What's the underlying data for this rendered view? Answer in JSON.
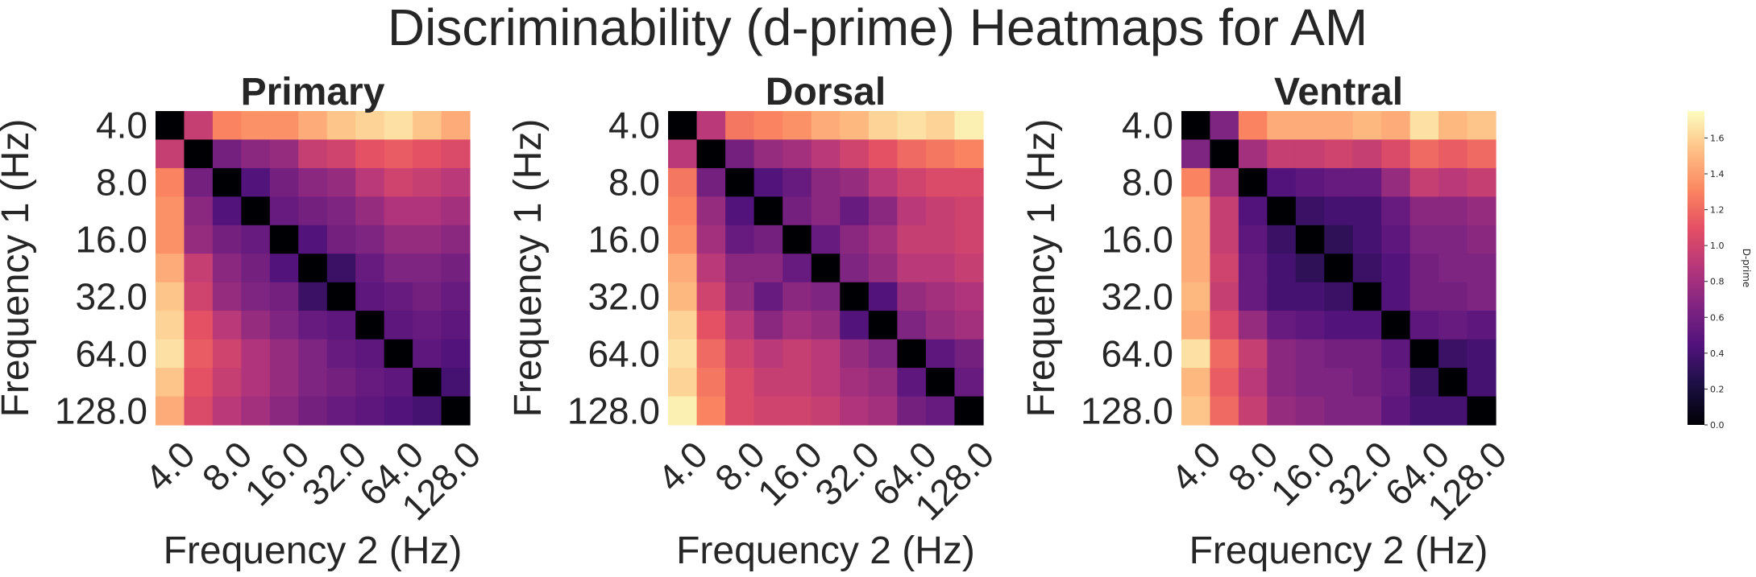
{
  "figure": {
    "title": "Discriminability (d-prime) Heatmaps for AM"
  },
  "colorbar": {
    "label": "D-prime",
    "ticks": [
      "0.0",
      "0.2",
      "0.4",
      "0.6",
      "0.8",
      "1.0",
      "1.2",
      "1.4",
      "1.6"
    ],
    "range": [
      0,
      1.75
    ],
    "colormap": "magma"
  },
  "chart_data": [
    {
      "type": "heatmap",
      "title": "Primary",
      "xlabel": "Frequency 2 (Hz)",
      "ylabel": "Frequency 1 (Hz)",
      "ytick_labels": [
        "4.0",
        "8.0",
        "16.0",
        "32.0",
        "64.0",
        "128.0"
      ],
      "xtick_labels": [
        "4.0",
        "8.0",
        "16.0",
        "32.0",
        "64.0",
        "128.0"
      ],
      "size": 11,
      "values": [
        [
          0.0,
          0.95,
          1.3,
          1.35,
          1.35,
          1.45,
          1.55,
          1.6,
          1.65,
          1.55,
          1.45
        ],
        [
          0.95,
          0.0,
          0.6,
          0.7,
          0.75,
          0.95,
          1.0,
          1.1,
          1.15,
          1.1,
          1.05
        ],
        [
          1.3,
          0.6,
          0.0,
          0.45,
          0.6,
          0.7,
          0.75,
          0.9,
          1.0,
          0.95,
          0.9
        ],
        [
          1.35,
          0.7,
          0.45,
          0.0,
          0.55,
          0.6,
          0.65,
          0.75,
          0.85,
          0.85,
          0.8
        ],
        [
          1.35,
          0.75,
          0.6,
          0.55,
          0.0,
          0.45,
          0.6,
          0.65,
          0.75,
          0.75,
          0.7
        ],
        [
          1.45,
          0.95,
          0.7,
          0.6,
          0.45,
          0.0,
          0.35,
          0.55,
          0.65,
          0.65,
          0.6
        ],
        [
          1.55,
          1.0,
          0.75,
          0.65,
          0.6,
          0.35,
          0.0,
          0.5,
          0.55,
          0.6,
          0.55
        ],
        [
          1.6,
          1.1,
          0.9,
          0.75,
          0.65,
          0.55,
          0.5,
          0.0,
          0.5,
          0.55,
          0.5
        ],
        [
          1.65,
          1.15,
          1.0,
          0.85,
          0.75,
          0.65,
          0.55,
          0.5,
          0.0,
          0.5,
          0.45
        ],
        [
          1.55,
          1.1,
          0.95,
          0.85,
          0.75,
          0.65,
          0.6,
          0.55,
          0.5,
          0.0,
          0.4
        ],
        [
          1.45,
          1.05,
          0.9,
          0.8,
          0.7,
          0.6,
          0.55,
          0.5,
          0.45,
          0.4,
          0.0
        ]
      ]
    },
    {
      "type": "heatmap",
      "title": "Dorsal",
      "xlabel": "Frequency 2 (Hz)",
      "ylabel": "Frequency 1 (Hz)",
      "ytick_labels": [
        "4.0",
        "8.0",
        "16.0",
        "32.0",
        "64.0",
        "128.0"
      ],
      "xtick_labels": [
        "4.0",
        "8.0",
        "16.0",
        "32.0",
        "64.0",
        "128.0"
      ],
      "size": 11,
      "values": [
        [
          0.0,
          0.9,
          1.25,
          1.3,
          1.35,
          1.45,
          1.5,
          1.6,
          1.65,
          1.6,
          1.7
        ],
        [
          0.9,
          0.0,
          0.6,
          0.75,
          0.8,
          0.9,
          1.0,
          1.1,
          1.2,
          1.25,
          1.3
        ],
        [
          1.25,
          0.6,
          0.0,
          0.45,
          0.55,
          0.7,
          0.75,
          0.9,
          1.0,
          1.05,
          1.05
        ],
        [
          1.3,
          0.75,
          0.45,
          0.0,
          0.6,
          0.7,
          0.55,
          0.7,
          0.9,
          0.95,
          1.0
        ],
        [
          1.35,
          0.8,
          0.55,
          0.6,
          0.0,
          0.55,
          0.7,
          0.8,
          0.95,
          0.95,
          1.0
        ],
        [
          1.45,
          0.9,
          0.7,
          0.7,
          0.55,
          0.0,
          0.65,
          0.75,
          0.9,
          0.9,
          0.95
        ],
        [
          1.5,
          1.0,
          0.75,
          0.55,
          0.7,
          0.65,
          0.0,
          0.45,
          0.75,
          0.8,
          0.85
        ],
        [
          1.6,
          1.1,
          0.9,
          0.7,
          0.8,
          0.75,
          0.45,
          0.0,
          0.65,
          0.75,
          0.8
        ],
        [
          1.65,
          1.2,
          1.0,
          0.9,
          0.95,
          0.9,
          0.75,
          0.65,
          0.0,
          0.5,
          0.6
        ],
        [
          1.6,
          1.25,
          1.05,
          0.95,
          0.95,
          0.9,
          0.8,
          0.75,
          0.5,
          0.0,
          0.55
        ],
        [
          1.7,
          1.3,
          1.05,
          1.0,
          1.0,
          0.95,
          0.85,
          0.8,
          0.6,
          0.55,
          0.0
        ]
      ]
    },
    {
      "type": "heatmap",
      "title": "Ventral",
      "xlabel": "Frequency 2 (Hz)",
      "ylabel": "Frequency 1 (Hz)",
      "ytick_labels": [
        "4.0",
        "8.0",
        "16.0",
        "32.0",
        "64.0",
        "128.0"
      ],
      "xtick_labels": [
        "4.0",
        "8.0",
        "16.0",
        "32.0",
        "64.0",
        "128.0"
      ],
      "size": 11,
      "values": [
        [
          0.0,
          0.65,
          1.3,
          1.45,
          1.45,
          1.45,
          1.5,
          1.45,
          1.65,
          1.5,
          1.55
        ],
        [
          0.65,
          0.0,
          0.8,
          0.95,
          0.95,
          1.0,
          0.95,
          1.05,
          1.2,
          1.15,
          1.2
        ],
        [
          1.3,
          0.8,
          0.0,
          0.45,
          0.5,
          0.55,
          0.55,
          0.75,
          0.95,
          0.9,
          0.95
        ],
        [
          1.45,
          0.95,
          0.45,
          0.0,
          0.35,
          0.4,
          0.4,
          0.55,
          0.7,
          0.7,
          0.75
        ],
        [
          1.45,
          0.95,
          0.5,
          0.35,
          0.0,
          0.3,
          0.4,
          0.5,
          0.65,
          0.65,
          0.7
        ],
        [
          1.45,
          1.0,
          0.55,
          0.4,
          0.3,
          0.0,
          0.35,
          0.45,
          0.6,
          0.65,
          0.65
        ],
        [
          1.5,
          0.95,
          0.55,
          0.4,
          0.4,
          0.35,
          0.0,
          0.45,
          0.6,
          0.6,
          0.65
        ],
        [
          1.45,
          1.05,
          0.75,
          0.55,
          0.5,
          0.45,
          0.45,
          0.0,
          0.5,
          0.55,
          0.5
        ],
        [
          1.65,
          1.2,
          0.95,
          0.7,
          0.65,
          0.6,
          0.6,
          0.5,
          0.0,
          0.35,
          0.4
        ],
        [
          1.5,
          1.15,
          0.9,
          0.7,
          0.65,
          0.65,
          0.6,
          0.55,
          0.35,
          0.0,
          0.4
        ],
        [
          1.55,
          1.2,
          0.95,
          0.75,
          0.7,
          0.65,
          0.65,
          0.5,
          0.4,
          0.4,
          0.0
        ]
      ]
    }
  ]
}
